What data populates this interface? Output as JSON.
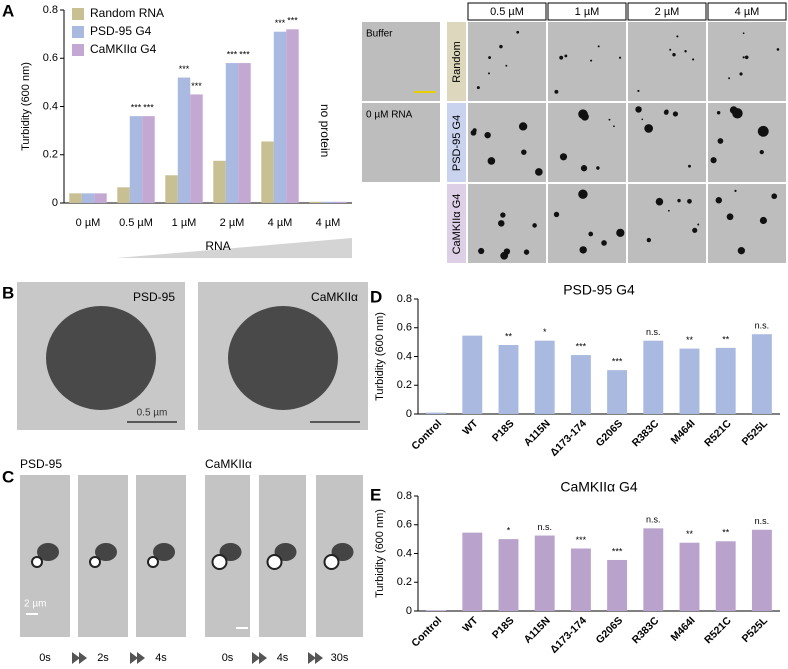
{
  "chart_data": [
    {
      "type": "bar",
      "y_label": "Turbidity (600 nm)",
      "x_label": "RNA",
      "annotation": "no protein",
      "categories": [
        "0 µM",
        "0.5 µM",
        "1 µM",
        "2 µM",
        "4 µM",
        "4 µM"
      ],
      "series": [
        {
          "name": "Random RNA",
          "color": "#c8bf92",
          "values": [
            0.04,
            0.065,
            0.115,
            0.175,
            0.255,
            0.005
          ],
          "significance": [
            null,
            null,
            null,
            null,
            null,
            null
          ]
        },
        {
          "name": "PSD-95 G4",
          "color": "#a9b9e0",
          "values": [
            0.04,
            0.36,
            0.52,
            0.58,
            0.71,
            0.005
          ],
          "significance": [
            null,
            "***",
            "***",
            "***",
            "***",
            null
          ]
        },
        {
          "name": "CaMKIIα G4",
          "color": "#c3a8d3",
          "values": [
            0.04,
            0.36,
            0.45,
            0.58,
            0.72,
            0.005
          ],
          "significance": [
            null,
            "***",
            "***",
            "***",
            "***",
            null
          ]
        }
      ],
      "legend": "upper left",
      "ylim": [
        0,
        0.8
      ],
      "yticks": [
        0,
        0.2,
        0.4,
        0.6,
        0.8
      ]
    },
    {
      "type": "bar",
      "title": "PSD-95 G4",
      "y_label": "Turbidity (600 nm)",
      "categories": [
        "Control",
        "WT",
        "P18S",
        "A115N",
        "Δ173-174",
        "G206S",
        "R383C",
        "M464I",
        "R521C",
        "P525L"
      ],
      "values": [
        0.01,
        0.545,
        0.48,
        0.51,
        0.41,
        0.305,
        0.51,
        0.455,
        0.46,
        0.555
      ],
      "significance": [
        null,
        null,
        "**",
        "*",
        "***",
        "***",
        "n.s.",
        "**",
        "**",
        "n.s."
      ],
      "color": "#a9b9e0",
      "ylim": [
        0,
        0.8
      ],
      "yticks": [
        0,
        0.2,
        0.4,
        0.6,
        0.8
      ]
    },
    {
      "type": "bar",
      "title": "CaMKIIα G4",
      "y_label": "Turbidity (600 nm)",
      "categories": [
        "Control",
        "WT",
        "P18S",
        "A115N",
        "Δ173-174",
        "G206S",
        "R383C",
        "M464I",
        "R521C",
        "P525L"
      ],
      "values": [
        0.005,
        0.545,
        0.5,
        0.525,
        0.435,
        0.355,
        0.575,
        0.475,
        0.485,
        0.565
      ],
      "significance": [
        null,
        null,
        "*",
        "n.s.",
        "***",
        "***",
        "n.s.",
        "**",
        "**",
        "n.s."
      ],
      "color": "#b9a3cc",
      "ylim": [
        0,
        0.8
      ],
      "yticks": [
        0,
        0.2,
        0.4,
        0.6,
        0.8
      ]
    }
  ],
  "panel_labels": [
    "A",
    "B",
    "C",
    "D",
    "E"
  ],
  "microscopy": {
    "column_headers": [
      "0.5 µM",
      "1 µM",
      "2 µM",
      "4 µM"
    ],
    "row_labels": [
      "Random",
      "PSD-95 G4",
      "CaMKIIα G4"
    ],
    "buffer_label": "Buffer",
    "zero_rna_label": "0 µM RNA"
  },
  "panel_b": {
    "labels": [
      "PSD-95",
      "CaMKIIα"
    ],
    "scale_bar": "0.5 µm"
  },
  "panel_c": {
    "labels": [
      "PSD-95",
      "CaMKIIα"
    ],
    "scale_bar": "2 µm",
    "times": [
      "0s",
      "2s",
      "4s",
      "0s",
      "4s",
      "30s"
    ]
  }
}
